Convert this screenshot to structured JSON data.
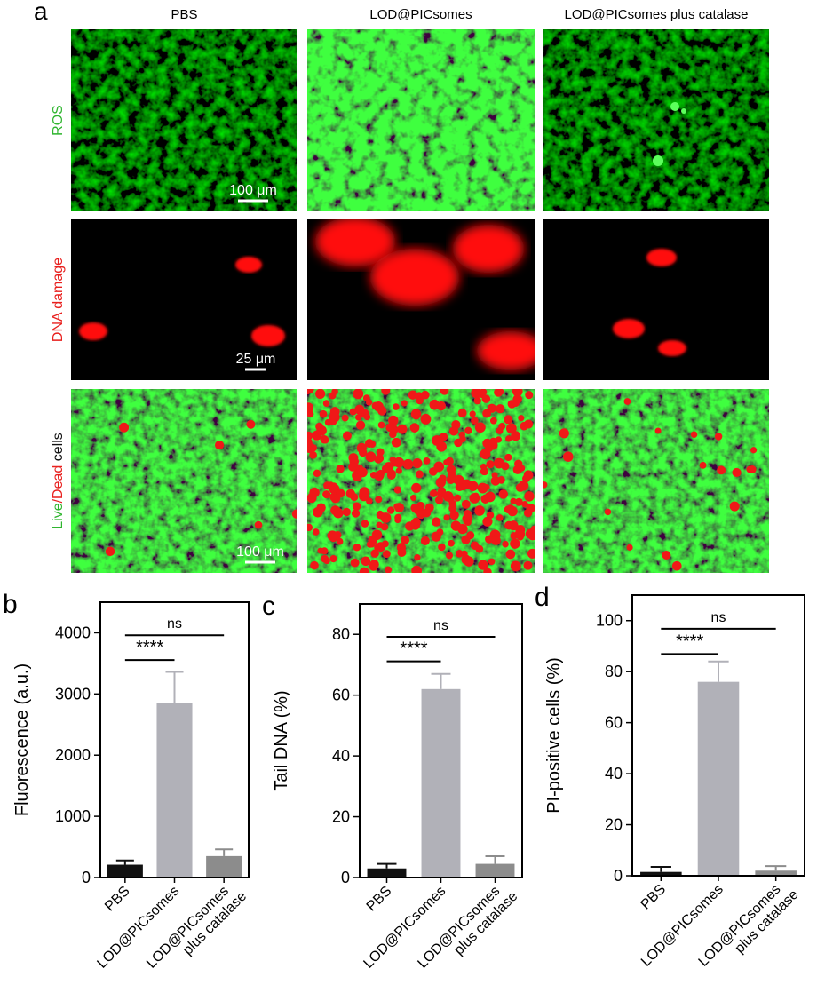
{
  "panel_a": {
    "label": "a",
    "columns": [
      "PBS",
      "LOD@PICsomes",
      "LOD@PICsomes plus catalase"
    ],
    "rows": [
      {
        "parts": [
          {
            "text": "ROS",
            "color": "#2fb52f"
          }
        ],
        "scale_bar": "100 μm"
      },
      {
        "parts": [
          {
            "text": "DNA damage",
            "color": "#e8201e"
          }
        ],
        "scale_bar": "25 μm"
      },
      {
        "parts": [
          {
            "text": "Live",
            "color": "#2fb52f"
          },
          {
            "text": "/Dead",
            "color": "#e8201e"
          },
          {
            "text": " cells",
            "color": "#111111"
          }
        ],
        "scale_bar": "100 μm"
      }
    ]
  },
  "chart_data": [
    {
      "type": "bar",
      "panel_label": "b",
      "ylabel": "Fluorescence (a.u.)",
      "categories": [
        "PBS",
        "LOD@PICsomes",
        "LOD@PICsomes plus catalase"
      ],
      "values": [
        210,
        2850,
        350
      ],
      "errors": [
        70,
        510,
        110
      ],
      "colors": [
        "#111111",
        "#b1b1b8",
        "#8c8c8c"
      ],
      "ylim": [
        0,
        4500
      ],
      "yticks": [
        0,
        1000,
        2000,
        3000,
        4000
      ],
      "annotations": [
        "****",
        "ns"
      ]
    },
    {
      "type": "bar",
      "panel_label": "c",
      "ylabel": "Tail DNA (%)",
      "categories": [
        "PBS",
        "LOD@PICsomes",
        "LOD@PICsomes plus catalase"
      ],
      "values": [
        3,
        62,
        4.5
      ],
      "errors": [
        1.5,
        5,
        2.5
      ],
      "colors": [
        "#111111",
        "#b1b1b8",
        "#8c8c8c"
      ],
      "ylim": [
        0,
        90
      ],
      "yticks": [
        0,
        20,
        40,
        60,
        80
      ],
      "annotations": [
        "****",
        "ns"
      ]
    },
    {
      "type": "bar",
      "panel_label": "d",
      "ylabel": "PI-positive cells (%)",
      "categories": [
        "PBS",
        "LOD@PICsomes",
        "LOD@PICsomes plus catalase"
      ],
      "values": [
        1.5,
        76,
        2
      ],
      "errors": [
        2,
        8,
        1.8
      ],
      "colors": [
        "#111111",
        "#b1b1b8",
        "#8c8c8c"
      ],
      "ylim": [
        0,
        110
      ],
      "yticks": [
        0,
        20,
        40,
        60,
        80,
        100
      ],
      "annotations": [
        "****",
        "ns"
      ]
    }
  ]
}
